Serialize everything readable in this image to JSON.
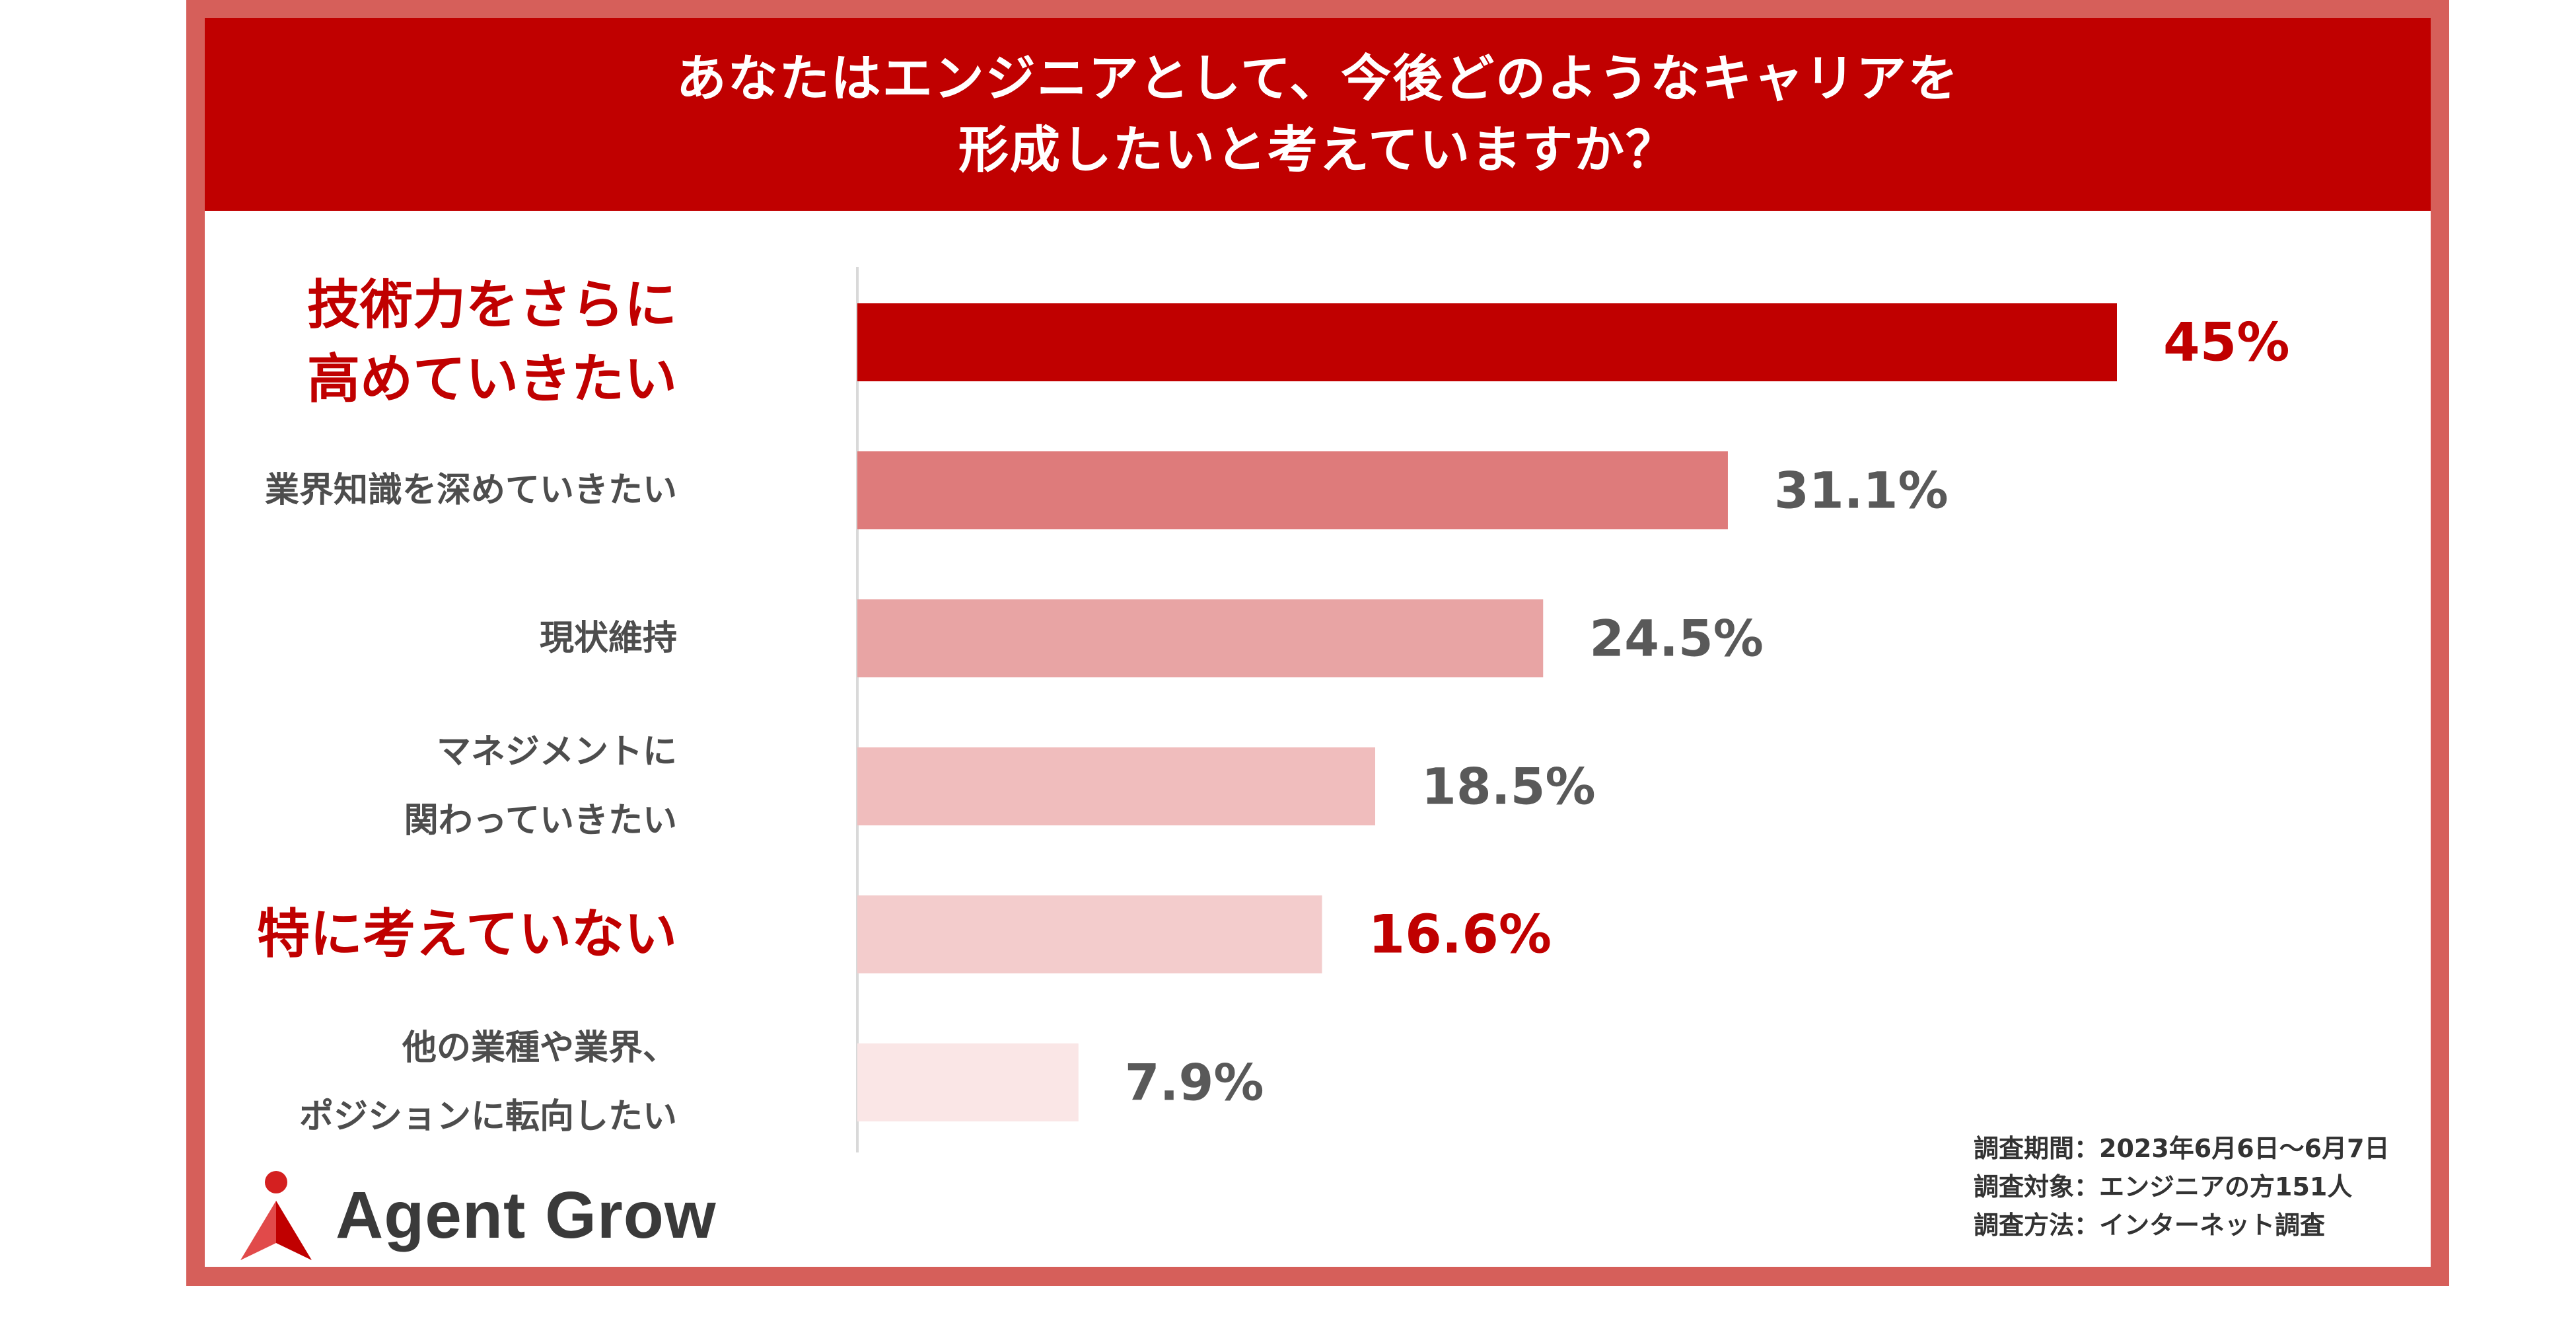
{
  "title_lines": [
    "あなたはエンジニアとして、今後どのようなキャリアを",
    "形成したいと考えていますか？"
  ],
  "chart_data": {
    "type": "bar",
    "orientation": "horizontal",
    "unit": "%",
    "xlim": [
      0,
      45
    ],
    "categories": [
      {
        "lines": [
          "技術力をさらに",
          "高めていきたい"
        ],
        "highlight": true
      },
      {
        "lines": [
          "業界知識を深めていきたい"
        ],
        "highlight": false
      },
      {
        "lines": [
          "現状維持"
        ],
        "highlight": false
      },
      {
        "lines": [
          "マネジメントに",
          "関わっていきたい"
        ],
        "highlight": false
      },
      {
        "lines": [
          "特に考えていない"
        ],
        "highlight": true
      },
      {
        "lines": [
          "他の業種や業界、",
          "ポジションに転向したい"
        ],
        "highlight": false
      }
    ],
    "values": [
      45,
      31.1,
      24.5,
      18.5,
      16.6,
      7.9
    ],
    "value_labels": [
      "45%",
      "31.1%",
      "24.5%",
      "18.5%",
      "16.6%",
      "7.9%"
    ],
    "colors": [
      "#c00000",
      "#de7b7b",
      "#e8a4a4",
      "#f0bdbd",
      "#f3cccc",
      "#fae6e6"
    ],
    "axis_color": "#d9d9d9",
    "highlight_color": "#c00000"
  },
  "brand": {
    "name": "Agent Grow",
    "logo_icon": "person-arrow-icon"
  },
  "notes": [
    "調査期間：2023年6月6日〜6月7日",
    "調査対象：エンジニアの方151人",
    "調査方法：インターネット調査"
  ],
  "colors": {
    "frame": "#d65f5a",
    "header_bg": "#c00000",
    "text_dark": "#4d4d4d"
  }
}
